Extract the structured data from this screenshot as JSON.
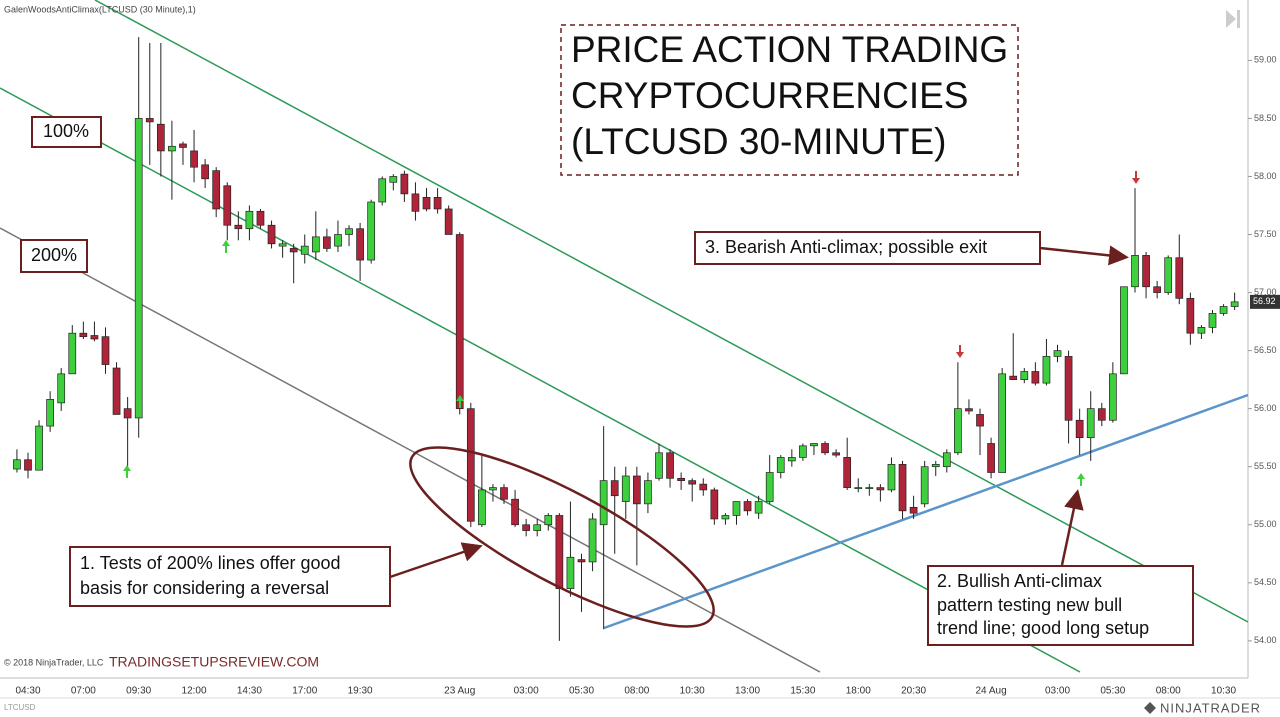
{
  "chart_data": {
    "type": "candlestick",
    "indicator_label": "GalenWoodsAntiClimax(LTCUSD (30 Minute),1)",
    "title_lines": [
      "PRICE ACTION TRADING",
      "CRYPTOCURRENCIES",
      "(LTCUSD 30-MINUTE)"
    ],
    "level_labels": [
      "100%",
      "200%"
    ],
    "annotations": [
      [
        "1. Tests of 200% lines offer good",
        "basis for considering a reversal"
      ],
      [
        "2. Bullish Anti-climax",
        "pattern testing new bull",
        "trend line; good long setup"
      ],
      [
        "3. Bearish Anti-climax; possible exit"
      ]
    ],
    "copyright": "© 2018 NinjaTrader, LLC",
    "watermark": "TRADINGSETUPSREVIEW.COM",
    "instrument": "LTCUSD",
    "brand": "NINJATRADER",
    "up_color": "#3dcf3d",
    "down_color": "#b0243a",
    "categories": [
      null,
      "04:30",
      null,
      null,
      null,
      null,
      "07:00",
      null,
      null,
      null,
      null,
      "09:30",
      null,
      null,
      null,
      null,
      "12:00",
      null,
      null,
      null,
      null,
      "14:30",
      null,
      null,
      null,
      null,
      "17:00",
      null,
      null,
      null,
      null,
      "19:30",
      null,
      null,
      null,
      null,
      null,
      null,
      null,
      null,
      "23 Aug",
      null,
      null,
      null,
      null,
      null,
      "03:00",
      null,
      null,
      null,
      null,
      "05:30",
      null,
      null,
      null,
      null,
      "08:00",
      null,
      null,
      null,
      null,
      "10:30",
      null,
      null,
      null,
      null,
      "13:00",
      null,
      null,
      null,
      null,
      "15:30",
      null,
      null,
      null,
      null,
      "18:00",
      null,
      null,
      null,
      null,
      "20:30",
      null,
      null,
      null,
      null,
      null,
      null,
      "24 Aug",
      null,
      null,
      null,
      null,
      null,
      "03:00",
      null,
      null,
      null,
      null,
      "05:30",
      null,
      null,
      null,
      null,
      "08:00",
      null,
      null,
      null,
      null,
      "10:30",
      null
    ],
    "open": [
      55.48,
      55.56,
      55.47,
      55.85,
      56.05,
      56.3,
      56.65,
      56.63,
      56.62,
      56.35,
      56.0,
      55.92,
      58.5,
      58.45,
      58.22,
      58.28,
      58.22,
      58.1,
      58.05,
      57.92,
      57.58,
      57.55,
      57.7,
      57.58,
      57.4,
      57.38,
      57.33,
      57.35,
      57.48,
      57.4,
      57.5,
      57.55,
      57.28,
      57.78,
      57.95,
      58.02,
      57.85,
      57.82,
      57.82,
      57.72,
      57.5,
      56.0,
      55.0,
      55.3,
      55.32,
      55.22,
      55.0,
      54.95,
      55.0,
      55.08,
      54.45,
      54.7,
      54.68,
      55.0,
      55.38,
      55.2,
      55.42,
      55.18,
      55.4,
      55.62,
      55.4,
      55.38,
      55.35,
      55.3,
      55.05,
      55.08,
      55.2,
      55.1,
      55.2,
      55.45,
      55.55,
      55.58,
      55.68,
      55.7,
      55.62,
      55.58,
      55.32,
      55.32,
      55.32,
      55.3,
      55.52,
      55.15,
      55.18,
      55.5,
      55.5,
      55.62,
      56.0,
      55.95,
      55.7,
      55.45,
      56.28,
      56.25,
      56.32,
      56.22,
      56.45,
      56.45,
      55.9,
      55.75,
      56.0,
      55.9,
      56.3,
      57.05,
      57.32,
      57.05,
      57.0,
      57.3,
      56.95,
      56.65,
      56.7,
      56.82,
      56.88
    ],
    "high": [
      55.65,
      55.62,
      55.9,
      56.15,
      56.35,
      56.72,
      56.75,
      56.75,
      56.7,
      56.4,
      56.1,
      59.2,
      59.15,
      59.15,
      58.48,
      58.3,
      58.4,
      58.15,
      58.08,
      57.95,
      57.7,
      57.75,
      57.72,
      57.62,
      57.45,
      57.42,
      57.5,
      57.7,
      57.55,
      57.62,
      57.58,
      57.6,
      57.8,
      58.0,
      58.02,
      58.05,
      57.95,
      57.9,
      57.9,
      57.75,
      57.52,
      56.05,
      55.6,
      55.35,
      55.35,
      55.3,
      55.05,
      55.05,
      55.1,
      55.1,
      55.2,
      54.75,
      55.1,
      55.85,
      55.5,
      55.5,
      55.5,
      55.45,
      55.7,
      55.65,
      55.45,
      55.4,
      55.4,
      55.32,
      55.1,
      55.2,
      55.22,
      55.25,
      55.6,
      55.6,
      55.65,
      55.7,
      55.7,
      55.72,
      55.65,
      55.75,
      55.4,
      55.35,
      55.35,
      55.58,
      55.55,
      55.25,
      55.55,
      55.55,
      55.65,
      56.4,
      56.08,
      56.0,
      55.75,
      56.35,
      56.65,
      56.35,
      56.4,
      56.6,
      56.55,
      56.5,
      56.0,
      56.15,
      56.05,
      56.4,
      57.05,
      57.9,
      57.35,
      57.1,
      57.32,
      57.5,
      57.0,
      56.72,
      56.85,
      56.9,
      57.0
    ],
    "low": [
      55.45,
      55.4,
      55.47,
      55.8,
      55.98,
      56.3,
      56.6,
      56.58,
      56.3,
      55.95,
      55.5,
      55.75,
      58.1,
      58.0,
      57.8,
      58.1,
      57.95,
      57.9,
      57.65,
      57.45,
      57.45,
      57.45,
      57.55,
      57.38,
      57.3,
      57.08,
      57.25,
      57.28,
      57.35,
      57.35,
      57.4,
      57.1,
      57.25,
      57.75,
      57.88,
      57.78,
      57.62,
      57.7,
      57.68,
      57.5,
      55.95,
      54.98,
      54.98,
      55.2,
      55.18,
      54.98,
      54.9,
      54.9,
      54.95,
      54.0,
      54.38,
      54.25,
      54.6,
      54.1,
      54.75,
      55.05,
      54.65,
      55.1,
      55.38,
      55.32,
      55.3,
      55.2,
      55.25,
      55.0,
      55.0,
      55.0,
      55.08,
      55.05,
      55.18,
      55.4,
      55.5,
      55.55,
      55.6,
      55.6,
      55.58,
      55.3,
      55.28,
      55.25,
      55.2,
      55.28,
      55.05,
      55.05,
      55.15,
      55.42,
      55.45,
      55.6,
      55.95,
      55.6,
      55.4,
      55.45,
      56.25,
      56.22,
      56.2,
      56.2,
      56.4,
      55.7,
      55.6,
      55.55,
      55.85,
      55.88,
      56.3,
      57.0,
      56.95,
      56.95,
      56.98,
      56.9,
      56.55,
      56.6,
      56.65,
      56.8,
      56.85
    ],
    "close": [
      55.56,
      55.47,
      55.85,
      56.08,
      56.3,
      56.65,
      56.62,
      56.6,
      56.38,
      55.95,
      55.92,
      58.5,
      58.47,
      58.22,
      58.26,
      58.25,
      58.08,
      57.98,
      57.72,
      57.58,
      57.55,
      57.7,
      57.58,
      57.42,
      57.42,
      57.35,
      57.4,
      57.48,
      57.38,
      57.5,
      57.55,
      57.28,
      57.78,
      57.98,
      58.0,
      57.85,
      57.7,
      57.72,
      57.72,
      57.5,
      56.0,
      55.03,
      55.3,
      55.32,
      55.22,
      55.0,
      54.95,
      55.0,
      55.08,
      54.45,
      54.72,
      54.68,
      55.05,
      55.38,
      55.25,
      55.42,
      55.18,
      55.38,
      55.62,
      55.4,
      55.38,
      55.35,
      55.3,
      55.05,
      55.08,
      55.2,
      55.12,
      55.2,
      55.45,
      55.58,
      55.58,
      55.68,
      55.7,
      55.62,
      55.6,
      55.32,
      55.32,
      55.32,
      55.3,
      55.52,
      55.12,
      55.1,
      55.5,
      55.52,
      55.62,
      56.0,
      55.98,
      55.85,
      55.45,
      56.3,
      56.25,
      56.32,
      56.22,
      56.45,
      56.5,
      55.9,
      55.75,
      56.0,
      55.9,
      56.3,
      57.05,
      57.32,
      57.05,
      57.0,
      57.3,
      56.95,
      56.65,
      56.7,
      56.82,
      56.88,
      56.92
    ],
    "price_marker": {
      "value": 56.92,
      "label": "56.92"
    },
    "ylim": [
      53.68,
      59.52
    ],
    "yticks": [
      {
        "value": 54,
        "label": "54.00"
      },
      {
        "value": 54.5,
        "label": "54.50"
      },
      {
        "value": 55,
        "label": "55.00"
      },
      {
        "value": 55.5,
        "label": "55.50"
      },
      {
        "value": 56,
        "label": "56.00"
      },
      {
        "value": 56.5,
        "label": "56.50"
      },
      {
        "value": 57,
        "label": "57.00"
      },
      {
        "value": 57.5,
        "label": "57.50"
      },
      {
        "value": 58,
        "label": "58.00"
      },
      {
        "value": 58.5,
        "label": "58.50"
      },
      {
        "value": 59,
        "label": "59.00"
      }
    ],
    "grid": false
  }
}
